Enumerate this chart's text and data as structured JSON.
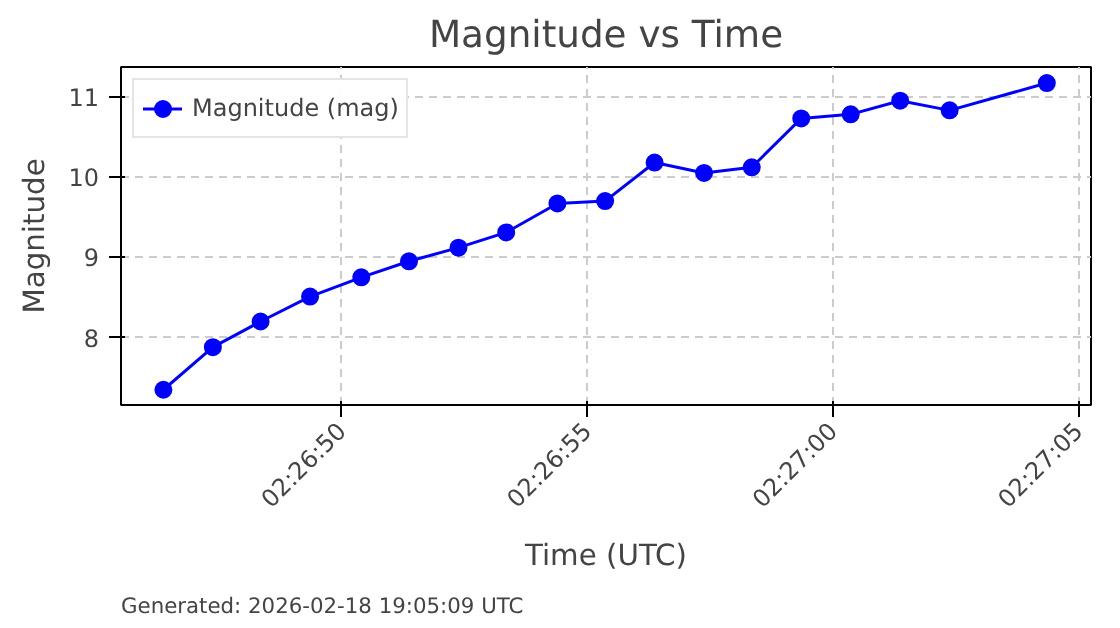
{
  "chart_data": {
    "type": "line",
    "title": "Magnitude vs Time",
    "xlabel": "Time (UTC)",
    "ylabel": "Magnitude",
    "x": [
      2.44621,
      2.44649,
      2.44676,
      2.44704,
      2.44733,
      2.4476,
      2.44788,
      2.44815,
      2.44844,
      2.44871,
      2.44899,
      2.44927,
      2.44954,
      2.44982,
      2.4501,
      2.45038,
      2.45066,
      2.45121
    ],
    "series": [
      {
        "name": "Magnitude (mag)",
        "color": "#0000ff",
        "values": [
          7.35,
          7.88,
          8.2,
          8.51,
          8.75,
          8.95,
          9.12,
          9.31,
          9.67,
          9.7,
          10.18,
          10.05,
          10.12,
          10.73,
          10.78,
          10.95,
          10.83,
          11.17
        ]
      }
    ],
    "xlim": [
      2.44597,
      2.45146
    ],
    "xticks": [
      {
        "value": 2.44722,
        "label": "02:26:50"
      },
      {
        "value": 2.44861,
        "label": "02:26:55"
      },
      {
        "value": 2.45,
        "label": "02:27:00"
      },
      {
        "value": 2.45139,
        "label": "02:27:05"
      }
    ],
    "ylim": [
      7.16,
      11.37
    ],
    "yticks": [
      8,
      9,
      10,
      11
    ],
    "grid": true,
    "legend": "top left",
    "marker": "circle",
    "line_style": "solid",
    "annotations": [
      "Generated: 2026-02-18 19:05:09 UTC"
    ]
  }
}
